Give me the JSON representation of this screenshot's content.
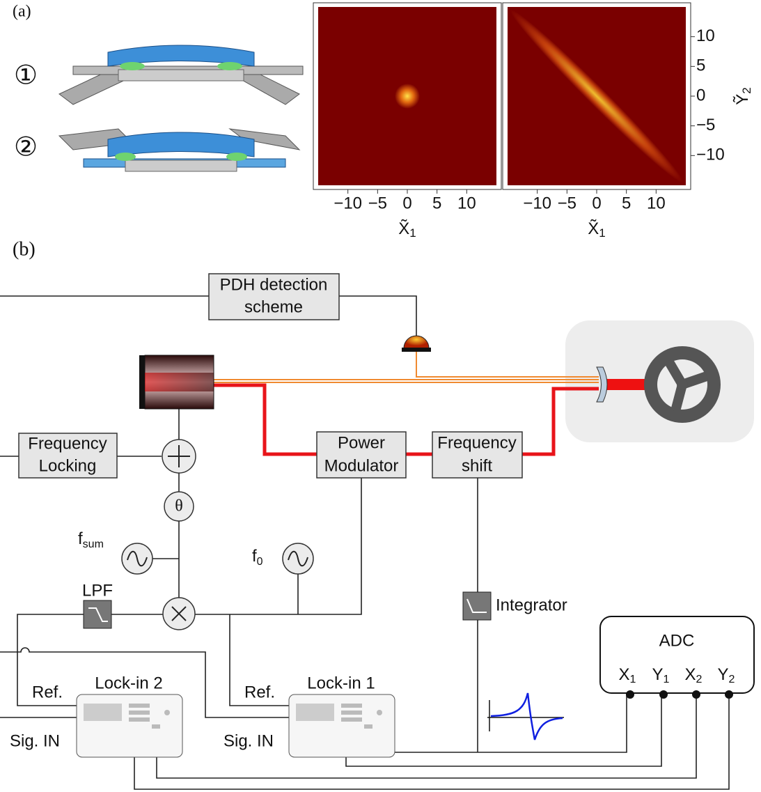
{
  "panel_a": {
    "label": "(a)",
    "modes": [
      "①",
      "②"
    ],
    "plots": [
      {
        "xlim": [
          -15,
          15
        ],
        "xticks": [
          {
            "value": -10,
            "label": "−10"
          },
          {
            "value": -5,
            "label": "−5"
          },
          0,
          5,
          10
        ],
        "xlabel": {
          "base": "X̃",
          "sub": "1"
        }
      },
      {
        "xlim": [
          -15,
          15
        ],
        "xticks": [
          {
            "value": -10,
            "label": "−10"
          },
          {
            "value": -5,
            "label": "−5"
          },
          0,
          5,
          10
        ],
        "xlabel": {
          "base": "X̃",
          "sub": "1"
        },
        "ylim": [
          -15,
          15
        ],
        "yticks": [
          10,
          5,
          0,
          {
            "value": -5,
            "label": "−5"
          },
          {
            "value": -10,
            "label": "−10"
          }
        ],
        "ylabel": {
          "base": "Ỹ",
          "sub": "2"
        }
      }
    ]
  },
  "panel_b": {
    "label": "(b)",
    "pdh": [
      "PDH detection",
      "scheme"
    ],
    "frequency_locking": [
      "Frequency",
      "Locking"
    ],
    "power_modulator": [
      "Power",
      "Modulator"
    ],
    "frequency_shift": [
      "Frequency",
      "shift"
    ],
    "phase": "θ",
    "f_sum": {
      "base": "f",
      "sub": "sum"
    },
    "f_0": {
      "base": "f",
      "sub": "0"
    },
    "lpf": "LPF",
    "integrator": "Integrator",
    "adc": {
      "title": "ADC",
      "channels": [
        {
          "base": "X",
          "sub": "1"
        },
        {
          "base": "Y",
          "sub": "1"
        },
        {
          "base": "X",
          "sub": "2"
        },
        {
          "base": "Y",
          "sub": "2"
        }
      ]
    },
    "lockin_2": {
      "title": "Lock-in 2",
      "ref": "Ref.",
      "sig": "Sig. IN"
    },
    "lockin_1": {
      "title": "Lock-in 1",
      "ref": "Ref.",
      "sig": "Sig. IN"
    }
  }
}
